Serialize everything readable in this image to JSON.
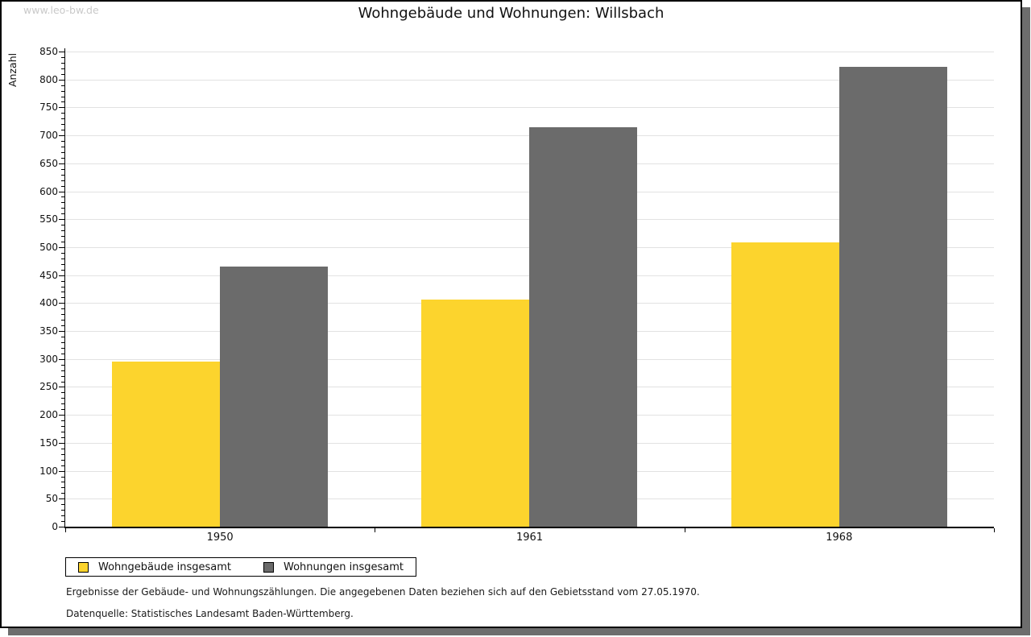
{
  "watermark": "www.leo-bw.de",
  "chart_data": {
    "type": "bar",
    "title": "Wohngebäude und Wohnungen: Willsbach",
    "categories": [
      "1950",
      "1961",
      "1968"
    ],
    "series": [
      {
        "name": "Wohngebäude insgesamt",
        "color": "#fcd42d",
        "values": [
          295,
          406,
          509
        ]
      },
      {
        "name": "Wohnungen insgesamt",
        "color": "#6b6b6b",
        "values": [
          466,
          714,
          822
        ]
      }
    ],
    "xlabel": "",
    "ylabel": "Anzahl",
    "ylim": [
      0,
      850
    ],
    "ytick_step": 50,
    "yminor_step": 10,
    "grid": true,
    "legend_position": "bottom-left"
  },
  "footer": {
    "line1": "Ergebnisse der Gebäude- und Wohnungszählungen. Die angegebenen Daten beziehen sich auf den Gebietsstand vom 27.05.1970.",
    "line2": "Datenquelle: Statistisches Landesamt Baden-Württemberg."
  },
  "colors": {
    "series_yellow": "#fcd42d",
    "series_gray": "#6b6b6b",
    "gridline": "#e2e2e2",
    "panel_shadow": "#6d6d6d",
    "watermark": "#c9c9c9",
    "axis": "#000000"
  }
}
